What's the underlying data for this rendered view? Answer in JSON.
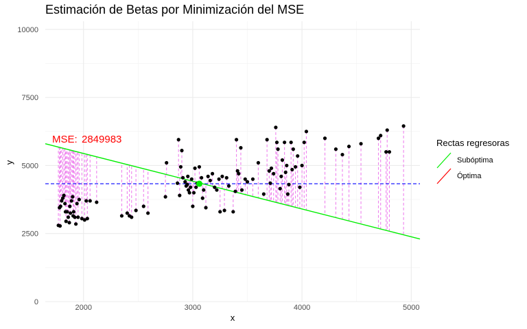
{
  "chart_data": {
    "type": "scatter",
    "title": "Estimación de Betas por Minimización del MSE",
    "xlabel": "x",
    "ylabel": "y",
    "xlim": [
      1650,
      5080
    ],
    "ylim": [
      0,
      10300
    ],
    "x_ticks": [
      2000,
      3000,
      4000,
      5000
    ],
    "y_ticks": [
      0,
      2500,
      5000,
      7500,
      10000
    ],
    "x_tick_labels": [
      "2000",
      "3000",
      "4000",
      "5000"
    ],
    "y_tick_labels": [
      "0",
      "2500",
      "5000",
      "7500",
      "10000"
    ],
    "grid": true,
    "legend": {
      "title": "Rectas regresoras",
      "position": "right",
      "items": [
        {
          "label": "Subóptima",
          "color": "#00ee00"
        },
        {
          "label": "Óptima",
          "color": "#ff0000"
        }
      ]
    },
    "annotation": {
      "label": "MSE:",
      "value": "2849983",
      "color": "#ff0000"
    },
    "mean_y": 4330,
    "mean_point": {
      "x": 3060,
      "y": 4330,
      "color": "#00ee00"
    },
    "suboptimal_line": {
      "x": [
        1650,
        5080
      ],
      "y": [
        5800,
        2300
      ],
      "color": "#00ee00"
    },
    "mean_line_color": "#0000ff",
    "residual_color": "#ee82ee",
    "point_color": "#000000",
    "points": [
      [
        1770,
        2800
      ],
      [
        1780,
        3450
      ],
      [
        1785,
        2780
      ],
      [
        1790,
        3500
      ],
      [
        1800,
        3700
      ],
      [
        1810,
        3800
      ],
      [
        1820,
        3900
      ],
      [
        1830,
        3600
      ],
      [
        1835,
        3300
      ],
      [
        1840,
        2950
      ],
      [
        1850,
        3300
      ],
      [
        1860,
        3100
      ],
      [
        1870,
        2900
      ],
      [
        1875,
        3500
      ],
      [
        1880,
        3250
      ],
      [
        1890,
        3700
      ],
      [
        1900,
        3850
      ],
      [
        1905,
        3150
      ],
      [
        1910,
        3300
      ],
      [
        1920,
        3100
      ],
      [
        1930,
        2850
      ],
      [
        1940,
        3600
      ],
      [
        1950,
        3100
      ],
      [
        1960,
        3750
      ],
      [
        1985,
        3050
      ],
      [
        2010,
        3000
      ],
      [
        2025,
        3700
      ],
      [
        2035,
        3050
      ],
      [
        2060,
        3700
      ],
      [
        2120,
        3650
      ],
      [
        2350,
        3150
      ],
      [
        2400,
        3250
      ],
      [
        2420,
        3150
      ],
      [
        2440,
        3100
      ],
      [
        2480,
        3350
      ],
      [
        2550,
        3500
      ],
      [
        2590,
        3250
      ],
      [
        2750,
        3850
      ],
      [
        2760,
        5100
      ],
      [
        2860,
        4350
      ],
      [
        2870,
        5950
      ],
      [
        2880,
        3900
      ],
      [
        2890,
        4950
      ],
      [
        2900,
        5550
      ],
      [
        2910,
        4550
      ],
      [
        2930,
        4400
      ],
      [
        2940,
        4250
      ],
      [
        2950,
        4300
      ],
      [
        2955,
        4600
      ],
      [
        2960,
        4100
      ],
      [
        2970,
        4000
      ],
      [
        2980,
        4200
      ],
      [
        2990,
        4500
      ],
      [
        3000,
        3500
      ],
      [
        3010,
        4000
      ],
      [
        3020,
        4900
      ],
      [
        3030,
        4200
      ],
      [
        3040,
        4350
      ],
      [
        3060,
        4950
      ],
      [
        3070,
        4300
      ],
      [
        3080,
        4550
      ],
      [
        3090,
        3800
      ],
      [
        3100,
        4100
      ],
      [
        3120,
        3450
      ],
      [
        3140,
        4600
      ],
      [
        3160,
        4450
      ],
      [
        3180,
        4700
      ],
      [
        3200,
        4200
      ],
      [
        3220,
        4100
      ],
      [
        3240,
        4500
      ],
      [
        3250,
        3300
      ],
      [
        3270,
        4600
      ],
      [
        3290,
        3350
      ],
      [
        3310,
        4550
      ],
      [
        3330,
        4250
      ],
      [
        3370,
        3300
      ],
      [
        3390,
        4050
      ],
      [
        3400,
        5950
      ],
      [
        3410,
        4800
      ],
      [
        3420,
        4700
      ],
      [
        3440,
        5650
      ],
      [
        3450,
        4100
      ],
      [
        3480,
        4500
      ],
      [
        3500,
        4400
      ],
      [
        3550,
        4500
      ],
      [
        3600,
        5100
      ],
      [
        3650,
        3950
      ],
      [
        3680,
        5950
      ],
      [
        3700,
        4800
      ],
      [
        3710,
        4350
      ],
      [
        3720,
        4900
      ],
      [
        3740,
        4700
      ],
      [
        3760,
        6400
      ],
      [
        3770,
        5850
      ],
      [
        3780,
        5600
      ],
      [
        3800,
        4150
      ],
      [
        3810,
        4600
      ],
      [
        3820,
        5200
      ],
      [
        3840,
        5850
      ],
      [
        3850,
        4750
      ],
      [
        3860,
        5000
      ],
      [
        3870,
        3950
      ],
      [
        3880,
        4300
      ],
      [
        3900,
        5850
      ],
      [
        3910,
        4850
      ],
      [
        3920,
        5600
      ],
      [
        3940,
        4950
      ],
      [
        3960,
        5350
      ],
      [
        3980,
        4200
      ],
      [
        4000,
        5000
      ],
      [
        4020,
        5850
      ],
      [
        4040,
        6250
      ],
      [
        4210,
        6000
      ],
      [
        4310,
        5600
      ],
      [
        4370,
        5400
      ],
      [
        4430,
        5700
      ],
      [
        4540,
        5800
      ],
      [
        4700,
        6000
      ],
      [
        4720,
        6100
      ],
      [
        4770,
        5500
      ],
      [
        4780,
        6300
      ],
      [
        4800,
        5500
      ],
      [
        4930,
        6450
      ]
    ]
  }
}
